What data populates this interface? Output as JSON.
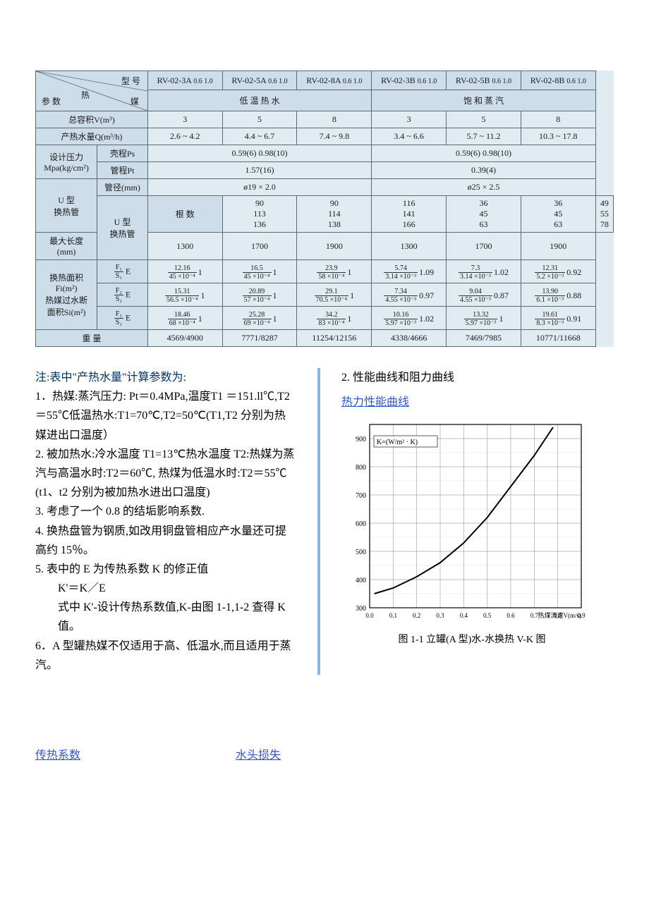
{
  "table": {
    "corner_top": "型 号",
    "corner_mid": "热",
    "corner_bottom": "参 数",
    "corner_right_bottom": "媒",
    "models": [
      "RV-02-3A",
      "RV-02-5A",
      "RV-02-8A",
      "RV-02-3B",
      "RV-02-5B",
      "RV-02-8B"
    ],
    "model_sub": "0.6\n1.0",
    "group_left_label": "低 温 热 水",
    "group_right_label": "饱 和 蒸 汽",
    "rows": {
      "totalVol": {
        "label": "总容积V(m³)",
        "vals": [
          "3",
          "5",
          "8",
          "3",
          "5",
          "8"
        ]
      },
      "hotWaterQ": {
        "label": "产热水量Q(m³/h)",
        "vals": [
          "2.6 ~ 4.2",
          "4.4 ~ 6.7",
          "7.4 ~ 9.8",
          "3.4 ~ 6.6",
          "5.7 ~ 11.2",
          "10.3 ~ 17.8"
        ]
      },
      "designP": {
        "label": "设计压力\nMpa(kg/cm²)"
      },
      "psLabel": "壳程Ps",
      "psL": "0.59(6)    0.98(10)",
      "psR": "0.59(6)    0.98(10)",
      "ptLabel": "管程Pt",
      "ptL": "1.57(16)",
      "ptR": "0.39(4)",
      "diaLabel": "管径(mm)",
      "diaL": "ø19 × 2.0",
      "diaR": "ø25 × 2.5",
      "utube": {
        "label": "U 型\n换热管"
      },
      "rootsLabel": "根 数",
      "roots": [
        [
          "90",
          "90",
          "116",
          "36",
          "36",
          "49"
        ],
        [
          "113",
          "114",
          "141",
          "45",
          "45",
          "55"
        ],
        [
          "136",
          "138",
          "166",
          "63",
          "63",
          "78"
        ]
      ],
      "maxLenLabel": "最大长度\n(mm)",
      "maxLen": [
        "1300",
        "1700",
        "1900",
        "1300",
        "1700",
        "1900"
      ],
      "area": {
        "label": "换热面积\nFi(m²)\n热媒过水断\n面积Si(m²)"
      },
      "f1Label": "F₁ / S₁ E",
      "f2Label": "F₂ / S₂ E",
      "f3Label": "F₃ / S₃ E",
      "f1": [
        {
          "num": "12.16",
          "den": "45 ×10⁻⁴",
          "e": "1"
        },
        {
          "num": "16.5",
          "den": "45 ×10⁻⁴",
          "e": "1"
        },
        {
          "num": "23.9",
          "den": "58 ×10⁻⁴",
          "e": "1"
        },
        {
          "num": "5.74",
          "den": "3.14 ×10⁻³",
          "e": "1.09"
        },
        {
          "num": "7.3",
          "den": "3.14 ×10⁻³",
          "e": "1.02"
        },
        {
          "num": "12.31",
          "den": "5.2 ×10⁻³",
          "e": "0.92"
        }
      ],
      "f2": [
        {
          "num": "15.31",
          "den": "56.5 ×10⁻⁴",
          "e": "1"
        },
        {
          "num": "20.89",
          "den": "57 ×10⁻⁴",
          "e": "1"
        },
        {
          "num": "29.1",
          "den": "70.5 ×10⁻⁴",
          "e": "1"
        },
        {
          "num": "7.34",
          "den": "4.55 ×10⁻³",
          "e": "0.97"
        },
        {
          "num": "9.04",
          "den": "4.55 ×10⁻³",
          "e": "0.87"
        },
        {
          "num": "13.90",
          "den": "6.1 ×10⁻³",
          "e": "0.88"
        }
      ],
      "f3": [
        {
          "num": "18.46",
          "den": "68 ×10⁻⁴",
          "e": "1"
        },
        {
          "num": "25.28",
          "den": "69 ×10⁻⁴",
          "e": "1"
        },
        {
          "num": "34.2",
          "den": "83 ×10⁻⁴",
          "e": "1"
        },
        {
          "num": "10.16",
          "den": "5.97 ×10⁻³",
          "e": "1.02"
        },
        {
          "num": "13.32",
          "den": "5.97 ×10⁻³",
          "e": "1"
        },
        {
          "num": "19.61",
          "den": "8.3 ×10⁻³",
          "e": "0.91"
        }
      ],
      "weightLabel": "重 量",
      "weight": [
        "4569/4900",
        "7771/8287",
        "11254/12156",
        "4338/4666",
        "7469/7985",
        "10771/11668"
      ]
    }
  },
  "notes": {
    "title": "注:表中\"产热水量\"计算参数为:",
    "p1": "1．热媒:蒸汽压力: Pt＝0.4MPa,温度T1 ＝151.ll℃,T2＝55℃低温热水:T1=70℃,T2=50℃(T1,T2 分别为热媒进出口温度）",
    "p2": "2. 被加热水:冷水温度 T1=13℃热水温度 T2:热媒为蒸汽与高温水时:T2＝60℃, 热煤为低温水时:T2＝55℃(t1、t2 分别为被加热水进出口温度)",
    "p3": "3. 考虑了一个 0.8 的结垢影响系数.",
    "p4": "4. 换热盘管为钢质,如改用铜盘管相应产水量还可提高约 15％。",
    "p5": "5. 表中的 E 为传热系数 K 的修正值",
    "p5b": "   K'＝K／E",
    "p5c": "   式中 K'-设计传热系数值,K-由图 1-1,1-2 查得 K 值。",
    "p6": "6．A 型罐热媒不仅适用于高、低温水,而且适用于蒸汽。"
  },
  "rightCol": {
    "sec2": "2. 性能曲线和阻力曲线",
    "heading": "热力性能曲线",
    "chart": {
      "y_label": "K=(W/m² · K)",
      "x_label": "热煤流速V(m/s)",
      "y_min": 300,
      "y_max": 950,
      "y_step": 100,
      "x_min": 0,
      "x_max": 0.9,
      "x_step": 0.1,
      "curve": [
        [
          0.02,
          350
        ],
        [
          0.1,
          370
        ],
        [
          0.2,
          410
        ],
        [
          0.3,
          460
        ],
        [
          0.4,
          530
        ],
        [
          0.5,
          620
        ],
        [
          0.6,
          730
        ],
        [
          0.7,
          840
        ],
        [
          0.78,
          940
        ]
      ],
      "caption": "图 1-1 立罐(A 型)水-水换热 V-K 图",
      "axis_color": "#333333",
      "grid_color": "#888888",
      "curve_color": "#000000",
      "background": "#ffffff"
    }
  },
  "bottom": {
    "left": "传热系数",
    "right": "水头损失"
  }
}
